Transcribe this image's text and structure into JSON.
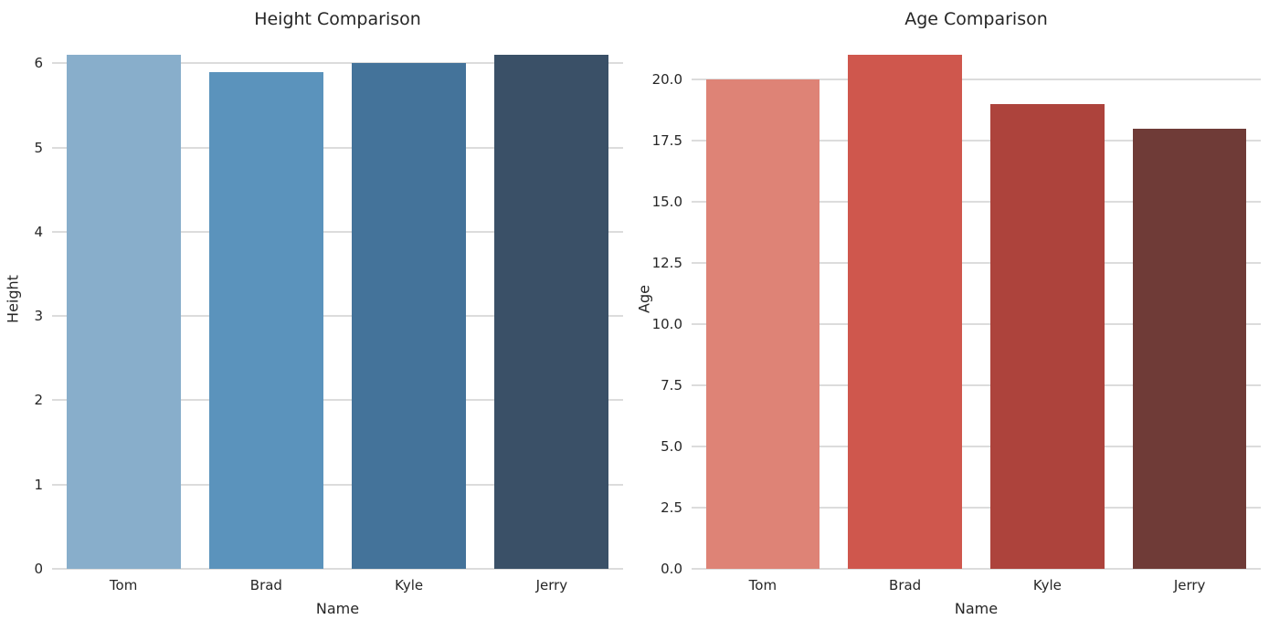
{
  "figure": {
    "background": "#ffffff",
    "text_color": "#262626",
    "grid_color": "#dcdcdc"
  },
  "chart_data": [
    {
      "type": "bar",
      "title": "Height Comparison",
      "xlabel": "Name",
      "ylabel": "Height",
      "categories": [
        "Tom",
        "Brad",
        "Kyle",
        "Jerry"
      ],
      "values": [
        6.1,
        5.9,
        6.0,
        6.1
      ],
      "bar_colors": [
        "#88AECB",
        "#5B93BC",
        "#44739A",
        "#3A5067"
      ],
      "ylim": [
        0,
        6.405
      ],
      "yticks": [
        0,
        1,
        2,
        3,
        4,
        5,
        6
      ],
      "ytick_labels": [
        "0",
        "1",
        "2",
        "3",
        "4",
        "5",
        "6"
      ],
      "grid": true,
      "legend_position": "none"
    },
    {
      "type": "bar",
      "title": "Age Comparison",
      "xlabel": "Name",
      "ylabel": "Age",
      "categories": [
        "Tom",
        "Brad",
        "Kyle",
        "Jerry"
      ],
      "values": [
        20,
        21,
        19,
        18
      ],
      "bar_colors": [
        "#DE8376",
        "#CF574D",
        "#AD433C",
        "#6F3B37"
      ],
      "ylim": [
        0,
        22.05
      ],
      "yticks": [
        0,
        2.5,
        5,
        7.5,
        10,
        12.5,
        15,
        17.5,
        20
      ],
      "ytick_labels": [
        "0.0",
        "2.5",
        "5.0",
        "7.5",
        "10.0",
        "12.5",
        "15.0",
        "17.5",
        "20.0"
      ],
      "grid": true,
      "legend_position": "none"
    }
  ]
}
